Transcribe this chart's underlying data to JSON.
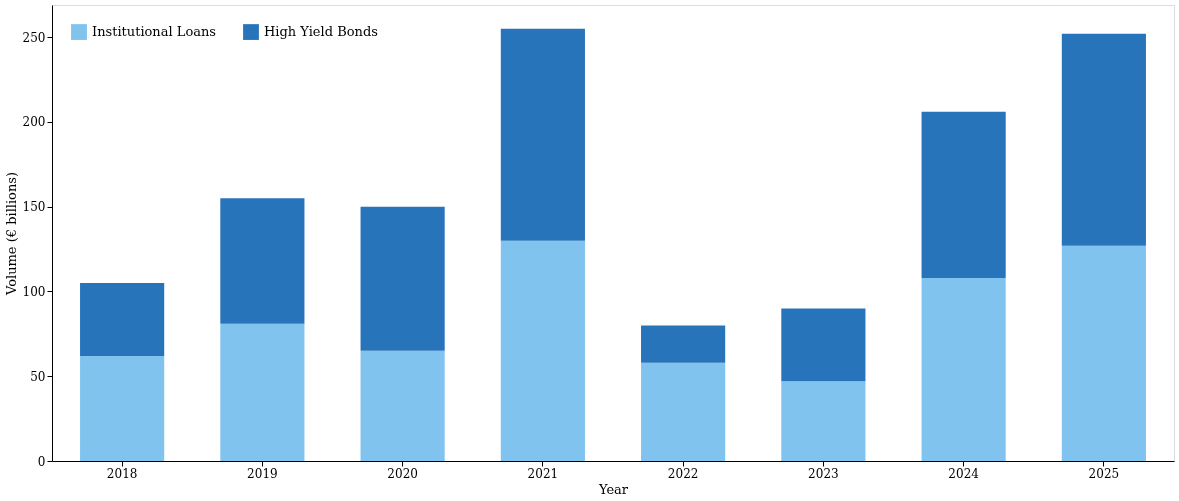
{
  "chart_data": {
    "type": "bar",
    "stacked": true,
    "xlabel": "Year",
    "ylabel": "Volume (€ billions)",
    "categories": [
      "2018",
      "2019",
      "2020",
      "2021",
      "2022",
      "2023",
      "2024",
      "2025"
    ],
    "series": [
      {
        "name": "Institutional Loans",
        "color": "#7fc3ee",
        "values": [
          62,
          81,
          65,
          130,
          58,
          47,
          108,
          127
        ]
      },
      {
        "name": "High Yield Bonds",
        "color": "#2874bb",
        "values": [
          43,
          74,
          85,
          125,
          22,
          43,
          98,
          125
        ]
      }
    ],
    "ylim": [
      0,
      269
    ],
    "yticks": [
      0,
      50,
      100,
      150,
      200,
      250
    ],
    "grid": false,
    "legend": "top left"
  }
}
